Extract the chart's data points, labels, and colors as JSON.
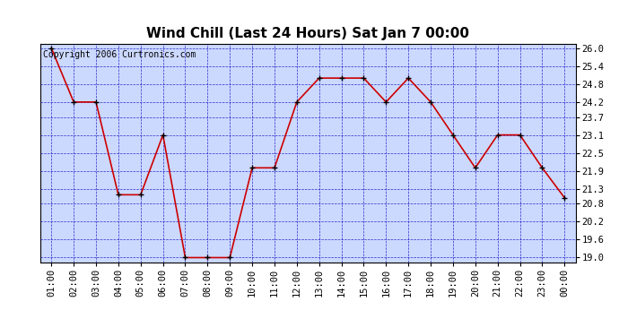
{
  "title": "Wind Chill (Last 24 Hours) Sat Jan 7 00:00",
  "copyright": "Copyright 2006 Curtronics.com",
  "x_labels": [
    "01:00",
    "02:00",
    "03:00",
    "04:00",
    "05:00",
    "06:00",
    "07:00",
    "08:00",
    "09:00",
    "10:00",
    "11:00",
    "12:00",
    "13:00",
    "14:00",
    "15:00",
    "16:00",
    "17:00",
    "18:00",
    "19:00",
    "20:00",
    "21:00",
    "22:00",
    "23:00",
    "00:00"
  ],
  "y_values": [
    26.0,
    24.2,
    24.2,
    21.1,
    21.1,
    23.1,
    19.0,
    19.0,
    19.0,
    22.0,
    22.0,
    24.2,
    25.0,
    25.0,
    25.0,
    24.2,
    25.0,
    24.2,
    23.1,
    22.0,
    23.1,
    23.1,
    22.0,
    21.0
  ],
  "y_ticks": [
    19.0,
    19.6,
    20.2,
    20.8,
    21.3,
    21.9,
    22.5,
    23.1,
    23.7,
    24.2,
    24.8,
    25.4,
    26.0
  ],
  "ylim": [
    18.85,
    26.15
  ],
  "line_color": "#cc0000",
  "marker_color": "#000000",
  "bg_color": "#ffffff",
  "plot_bg_color": "#ccd9ff",
  "grid_color": "#0000bb",
  "title_color": "#000000",
  "copyright_color": "#000000",
  "title_fontsize": 11,
  "tick_fontsize": 7.5,
  "copyright_fontsize": 7
}
